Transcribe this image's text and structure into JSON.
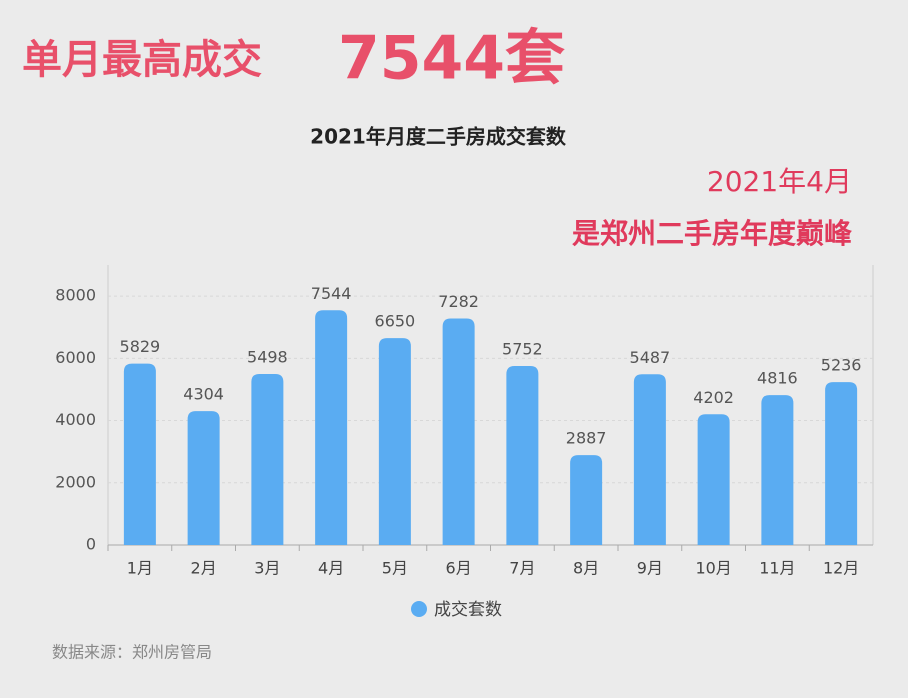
{
  "chart_data": {
    "type": "bar",
    "headline": "单月最高成交",
    "headline_value": "7544套",
    "title": "2021年月度二手房成交套数",
    "annotations": [
      "2021年4月",
      "是郑州二手房年度巅峰"
    ],
    "categories": [
      "1月",
      "2月",
      "3月",
      "4月",
      "5月",
      "6月",
      "7月",
      "8月",
      "9月",
      "10月",
      "11月",
      "12月"
    ],
    "series": [
      {
        "name": "成交套数",
        "color": "#5aacf2",
        "values": [
          5829,
          4304,
          5498,
          7544,
          6650,
          7282,
          5752,
          2887,
          5487,
          4202,
          4816,
          5236
        ]
      }
    ],
    "ylim": [
      0,
      9000
    ],
    "yticks": [
      0,
      2000,
      4000,
      6000,
      8000
    ],
    "grid": true,
    "source": "数据来源：郑州房管局"
  }
}
